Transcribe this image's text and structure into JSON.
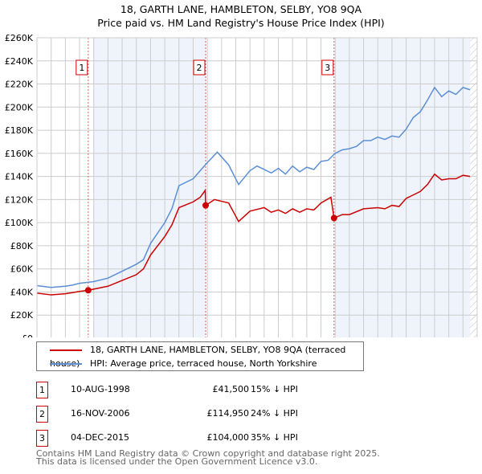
{
  "title": "18, GARTH LANE, HAMBLETON, SELBY, YO8 9QA",
  "subtitle": "Price paid vs. HM Land Registry's House Price Index (HPI)",
  "chart_data": {
    "type": "line",
    "title": "18, GARTH LANE, HAMBLETON, SELBY, YO8 9QA",
    "subtitle": "Price paid vs. HM Land Registry's House Price Index (HPI)",
    "xlim": [
      1995,
      2026
    ],
    "ylim": [
      0,
      260000
    ],
    "x_ticks": [
      "1995",
      "1996",
      "1997",
      "1998",
      "1999",
      "2000",
      "2001",
      "2002",
      "2003",
      "2004",
      "2005",
      "2006",
      "2007",
      "2008",
      "2009",
      "2010",
      "2011",
      "2012",
      "2013",
      "2014",
      "2015",
      "2016",
      "2017",
      "2018",
      "2019",
      "2020",
      "2021",
      "2022",
      "2023",
      "2024",
      "2025",
      "2026"
    ],
    "y_ticks": [
      "£0",
      "£20K",
      "£40K",
      "£60K",
      "£80K",
      "£100K",
      "£120K",
      "£140K",
      "£160K",
      "£180K",
      "£200K",
      "£220K",
      "£240K",
      "£260K"
    ],
    "grid": true,
    "series": [
      {
        "name": "18, GARTH LANE, HAMBLETON, SELBY, YO8 9QA (terraced house)",
        "color": "#cc0000",
        "x": [
          1995,
          1996,
          1997,
          1998,
          1998.6,
          1999,
          2000,
          2001,
          2002,
          2002.5,
          2003,
          2004,
          2004.5,
          2005,
          2006,
          2006.5,
          2006.85,
          2006.88,
          2007.5,
          2008.5,
          2009.2,
          2010,
          2011,
          2011.5,
          2012,
          2012.5,
          2013,
          2013.5,
          2014,
          2014.5,
          2015,
          2015.7,
          2015.92,
          2016.5,
          2017,
          2018,
          2019,
          2019.5,
          2020,
          2020.5,
          2021,
          2021.5,
          2022,
          2022.5,
          2023,
          2023.5,
          2024,
          2024.5,
          2025,
          2025.5
        ],
        "y": [
          39000,
          37500,
          38500,
          40500,
          41500,
          42500,
          45000,
          50000,
          55000,
          60000,
          72000,
          88000,
          98000,
          113000,
          118000,
          122000,
          128000,
          114950,
          120000,
          117000,
          101000,
          110000,
          113000,
          109000,
          111000,
          108000,
          112000,
          109000,
          112000,
          111000,
          117000,
          122000,
          104000,
          107000,
          107000,
          112000,
          113000,
          112000,
          115000,
          114000,
          121000,
          124000,
          127000,
          133000,
          142000,
          137000,
          138000,
          138000,
          141000,
          140000
        ]
      },
      {
        "name": "HPI: Average price, terraced house, North Yorkshire",
        "color": "#5b8fd4",
        "x": [
          1995,
          1996,
          1997,
          1997.5,
          1998,
          1999,
          2000,
          2001,
          2002,
          2002.5,
          2003,
          2004,
          2004.5,
          2005,
          2006,
          2006.5,
          2007,
          2007.7,
          2008.5,
          2009.2,
          2010,
          2010.5,
          2011,
          2011.5,
          2012,
          2012.5,
          2013,
          2013.5,
          2014,
          2014.5,
          2015,
          2015.5,
          2016,
          2016.5,
          2017,
          2017.5,
          2018,
          2018.5,
          2019,
          2019.5,
          2020,
          2020.5,
          2021,
          2021.5,
          2022,
          2022.5,
          2023,
          2023.5,
          2024,
          2024.5,
          2025,
          2025.5
        ],
        "y": [
          45500,
          44000,
          45000,
          46000,
          47500,
          49000,
          52000,
          58000,
          64000,
          68000,
          82000,
          100000,
          112000,
          132000,
          138000,
          145000,
          152000,
          161000,
          150000,
          133000,
          145000,
          149000,
          146000,
          143000,
          147000,
          142000,
          149000,
          144000,
          148000,
          146000,
          153000,
          154000,
          160000,
          163000,
          164000,
          166000,
          171000,
          171000,
          174000,
          172000,
          175000,
          174000,
          181000,
          191000,
          196000,
          206000,
          217000,
          209000,
          214000,
          211000,
          217000,
          215000
        ]
      }
    ],
    "sales": [
      {
        "label": "1",
        "x": 1998.61,
        "y": 41500,
        "date": "10-AUG-1998",
        "price": "£41,500",
        "hpi": "15% ↓ HPI"
      },
      {
        "label": "2",
        "x": 2006.88,
        "y": 114950,
        "date": "16-NOV-2006",
        "price": "£114,950",
        "hpi": "24% ↓ HPI"
      },
      {
        "label": "3",
        "x": 2015.92,
        "y": 104000,
        "date": "04-DEC-2015",
        "price": "£104,000",
        "hpi": "35% ↓ HPI"
      }
    ],
    "legend": "below"
  },
  "footer": [
    "Contains HM Land Registry data © Crown copyright and database right 2025.",
    "This data is licensed under the Open Government Licence v3.0."
  ]
}
